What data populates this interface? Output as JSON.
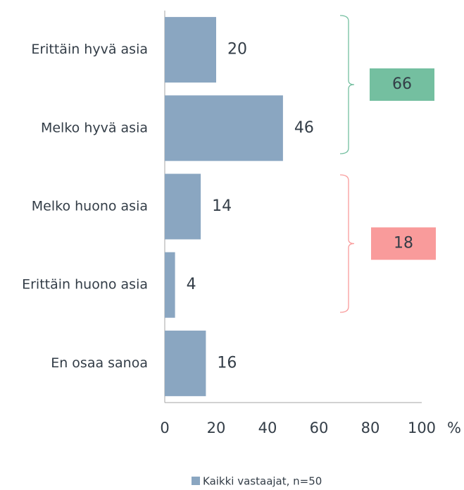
{
  "chart_data": {
    "type": "hbar",
    "categories": [
      "Erittäin hyvä asia",
      "Melko hyvä asia",
      "Melko huono asia",
      "Erittäin huono asia",
      "En osaa sanoa"
    ],
    "series": [
      {
        "name": "Kaikki vastaajat, n=50",
        "color": "#8aa6c1",
        "values": [
          20,
          46,
          14,
          4,
          16
        ]
      }
    ],
    "xlim": [
      0,
      100
    ],
    "xticks": [
      0,
      20,
      40,
      60,
      80,
      100
    ],
    "xlabel": "%",
    "annotations": [
      {
        "value": 66,
        "color": "#74bfa0"
      },
      {
        "value": 18,
        "color": "#f99b9b"
      }
    ]
  }
}
